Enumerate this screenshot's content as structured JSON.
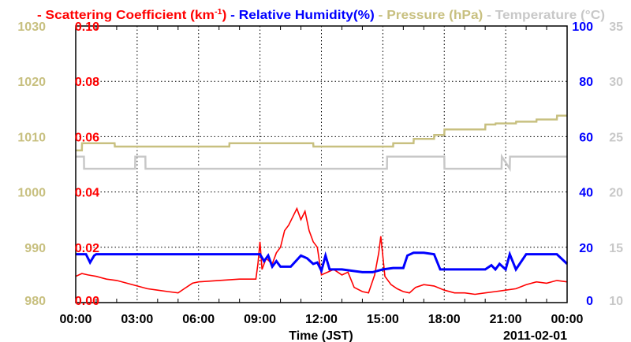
{
  "chart_data": {
    "type": "line",
    "xlabel": "Time (JST)",
    "date_label": "2011-02-01",
    "x_ticks": [
      "00:00",
      "03:00",
      "06:00",
      "09:00",
      "12:00",
      "15:00",
      "18:00",
      "21:00",
      "00:00"
    ],
    "xlim": [
      0,
      24
    ],
    "legend": [
      {
        "name": "Scattering Coefficient (km",
        "sup": "-1",
        ")": ")",
        "color": "#ff0000"
      },
      {
        "name": "Relative Humidity(%)",
        "color": "#0000ff"
      },
      {
        "name": "Pressure (hPa)",
        "color": "#c8c080"
      },
      {
        "name": "Temperature (°C)",
        "color": "#c8c8c8"
      }
    ],
    "axes": {
      "pressure": {
        "ticks": [
          "980",
          "990",
          "1000",
          "1010",
          "1020",
          "1030"
        ],
        "ylim": [
          980,
          1030
        ],
        "color": "#c8c080"
      },
      "scattering": {
        "ticks": [
          "0.00",
          "0.02",
          "0.04",
          "0.06",
          "0.08",
          "0.10"
        ],
        "ylim": [
          0,
          0.1
        ],
        "color": "#ff0000"
      },
      "humidity": {
        "ticks": [
          "0",
          "20",
          "40",
          "60",
          "80",
          "100"
        ],
        "ylim": [
          0,
          100
        ],
        "color": "#0000ff"
      },
      "temperature": {
        "ticks": [
          "10",
          "15",
          "20",
          "25",
          "30",
          "35"
        ],
        "ylim": [
          10,
          35
        ],
        "color": "#c8c8c8"
      }
    },
    "series": [
      {
        "name": "Scattering Coefficient",
        "axis": "scattering",
        "color": "#ff0000",
        "x": [
          0,
          0.3,
          0.6,
          1,
          1.5,
          2,
          2.5,
          3,
          3.5,
          4,
          4.5,
          5,
          5.3,
          5.7,
          6,
          7,
          8,
          8.8,
          8.9,
          9,
          9.1,
          9.3,
          9.6,
          9.8,
          10,
          10.2,
          10.4,
          10.6,
          10.8,
          11,
          11.2,
          11.4,
          11.6,
          11.8,
          12,
          12.3,
          12.6,
          13,
          13.3,
          13.6,
          14,
          14.3,
          14.6,
          14.8,
          14.9,
          15.1,
          15.4,
          15.7,
          16,
          16.3,
          16.6,
          17,
          17.5,
          18,
          18.5,
          19,
          19.5,
          20,
          20.5,
          21,
          21.5,
          22,
          22.5,
          23,
          23.5,
          24
        ],
        "values": [
          0.0095,
          0.0105,
          0.01,
          0.0095,
          0.0085,
          0.008,
          0.007,
          0.006,
          0.005,
          0.0045,
          0.004,
          0.0035,
          0.005,
          0.007,
          0.0075,
          0.008,
          0.0085,
          0.0085,
          0.014,
          0.022,
          0.012,
          0.016,
          0.014,
          0.018,
          0.02,
          0.026,
          0.028,
          0.031,
          0.034,
          0.03,
          0.033,
          0.026,
          0.022,
          0.02,
          0.01,
          0.011,
          0.012,
          0.01,
          0.011,
          0.0055,
          0.004,
          0.0035,
          0.01,
          0.018,
          0.024,
          0.0095,
          0.0065,
          0.005,
          0.004,
          0.0035,
          0.0055,
          0.0065,
          0.006,
          0.0045,
          0.0035,
          0.0035,
          0.003,
          0.0035,
          0.004,
          0.0045,
          0.005,
          0.0065,
          0.0075,
          0.007,
          0.008,
          0.0075
        ]
      },
      {
        "name": "Relative Humidity",
        "axis": "humidity",
        "color": "#0000ff",
        "x": [
          0,
          0.5,
          0.7,
          0.9,
          1,
          2,
          4,
          6,
          8,
          9,
          9.2,
          9.4,
          9.6,
          9.8,
          10,
          10.5,
          11,
          11.3,
          11.6,
          11.8,
          12,
          12.2,
          12.4,
          13,
          14,
          14.5,
          15,
          15.5,
          16,
          16.2,
          16.5,
          17,
          17.5,
          17.8,
          18,
          19,
          20,
          20.3,
          20.5,
          20.7,
          21,
          21.2,
          21.5,
          22,
          22.5,
          23,
          23.5,
          24
        ],
        "values": [
          17.5,
          17.5,
          14.5,
          17,
          17.5,
          17.5,
          17.5,
          17.5,
          17.5,
          17.5,
          15,
          17,
          13,
          15,
          13,
          13,
          17,
          16,
          14,
          14.5,
          11.5,
          17,
          12,
          12,
          11,
          11,
          12,
          12.5,
          12.5,
          17,
          18,
          18,
          17.5,
          12,
          12,
          12,
          12,
          13.5,
          12,
          14,
          12,
          17.5,
          12,
          17.5,
          17.5,
          17.5,
          17.5,
          14
        ]
      },
      {
        "name": "Pressure",
        "axis": "pressure",
        "color": "#c8c080",
        "x": [
          0,
          0.3,
          0.31,
          1.9,
          1.91,
          7.5,
          7.51,
          11.6,
          11.61,
          15.5,
          15.51,
          16.5,
          16.51,
          17.5,
          17.51,
          18,
          18.01,
          19.5,
          19.51,
          20,
          20.01,
          20.5,
          20.51,
          21.5,
          21.51,
          22.5,
          22.51,
          23.5,
          23.51,
          24
        ],
        "values": [
          1007.5,
          1007.5,
          1008.8,
          1008.8,
          1008.2,
          1008.2,
          1008.8,
          1008.8,
          1008.2,
          1008.2,
          1008.8,
          1008.8,
          1009.6,
          1009.6,
          1010.3,
          1010.3,
          1011.3,
          1011.3,
          1011.3,
          1011.3,
          1012.2,
          1012.2,
          1012.4,
          1012.4,
          1012.7,
          1012.7,
          1013.1,
          1013.1,
          1013.8,
          1013.8
        ]
      },
      {
        "name": "Temperature",
        "axis": "temperature",
        "color": "#c8c8c8",
        "x": [
          0,
          0.4,
          0.41,
          2.9,
          2.91,
          3.4,
          3.41,
          15.2,
          15.21,
          18,
          18.01,
          20.8,
          20.81,
          21.2,
          21.21,
          24
        ],
        "values": [
          23.2,
          23.2,
          22.1,
          22.1,
          23.2,
          23.2,
          22.1,
          22.1,
          23.2,
          23.2,
          22.1,
          22.1,
          23.2,
          22.1,
          23.2,
          23.2
        ]
      }
    ]
  }
}
